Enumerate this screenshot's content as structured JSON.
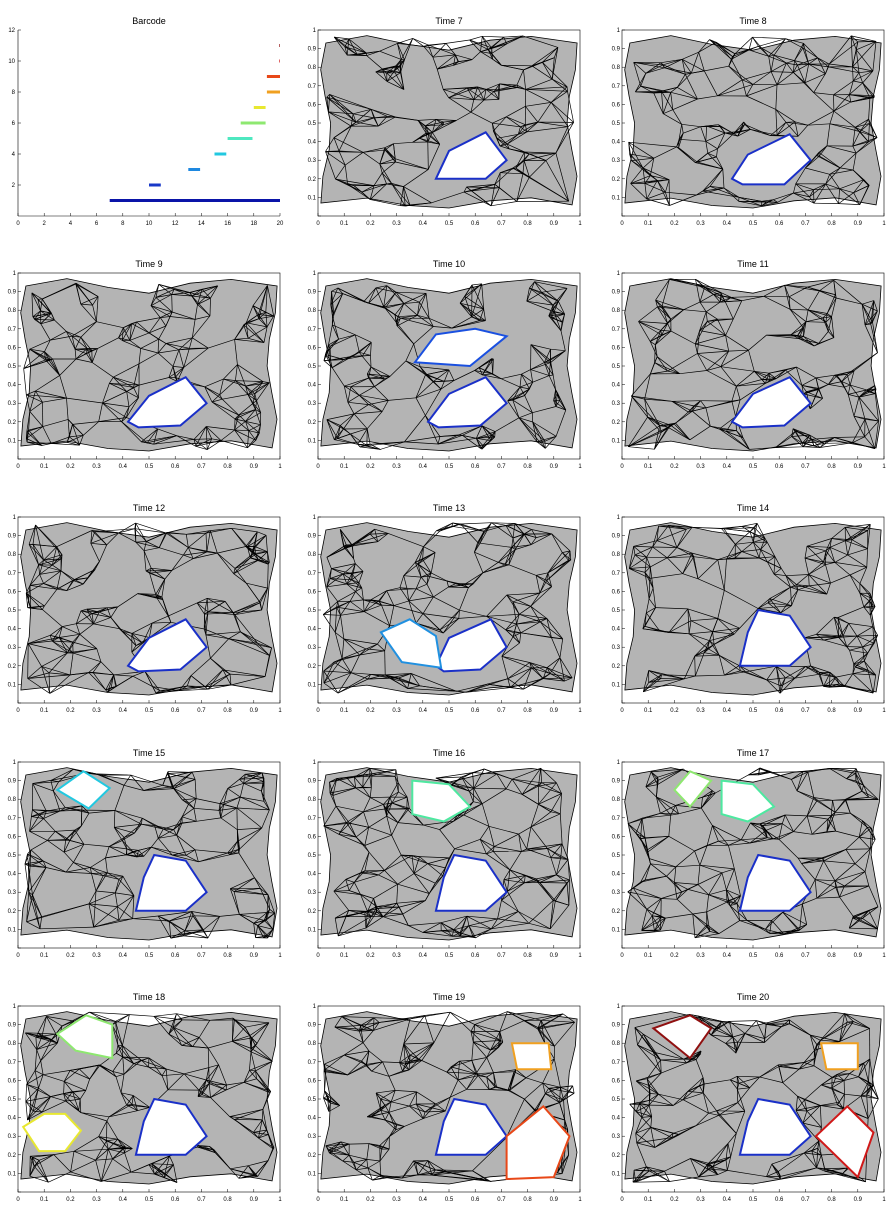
{
  "figure": {
    "background": "#ffffff"
  },
  "chart_data": [
    {
      "type": "bar",
      "title": "Barcode",
      "xlim": [
        0,
        20
      ],
      "ylim": [
        0,
        12
      ],
      "xticks": [
        "0",
        "2",
        "4",
        "6",
        "8",
        "10",
        "12",
        "14",
        "16",
        "18",
        "20"
      ],
      "yticks": [
        "2",
        "4",
        "6",
        "8",
        "10",
        "12"
      ],
      "bars": [
        {
          "index": 1,
          "start": 7.0,
          "end": 20.0,
          "color": "#0a14a8"
        },
        {
          "index": 2,
          "start": 10.0,
          "end": 10.9,
          "color": "#1838c8"
        },
        {
          "index": 3,
          "start": 13.0,
          "end": 13.9,
          "color": "#1e88e0"
        },
        {
          "index": 4,
          "start": 15.0,
          "end": 15.9,
          "color": "#22c8e0"
        },
        {
          "index": 5,
          "start": 16.0,
          "end": 17.9,
          "color": "#4ee8c0"
        },
        {
          "index": 6,
          "start": 17.0,
          "end": 18.9,
          "color": "#8ee870"
        },
        {
          "index": 7,
          "start": 18.0,
          "end": 18.9,
          "color": "#e8e830"
        },
        {
          "index": 8,
          "start": 19.0,
          "end": 20.0,
          "color": "#f0a020"
        },
        {
          "index": 9,
          "start": 19.0,
          "end": 20.0,
          "color": "#e84818"
        },
        {
          "index": 10,
          "start": 19.95,
          "end": 20.0,
          "color": "#d01818"
        },
        {
          "index": 11,
          "start": 19.95,
          "end": 20.0,
          "color": "#901010"
        }
      ]
    },
    {
      "type": "scatter",
      "title": "Time  7",
      "xlim": [
        0,
        1
      ],
      "ylim": [
        0,
        1
      ],
      "cycles": [
        {
          "color": "#1a30c8",
          "points": [
            [
              0.45,
              0.2
            ],
            [
              0.5,
              0.35
            ],
            [
              0.64,
              0.45
            ],
            [
              0.72,
              0.3
            ],
            [
              0.64,
              0.2
            ]
          ]
        }
      ]
    },
    {
      "type": "scatter",
      "title": "Time  8",
      "xlim": [
        0,
        1
      ],
      "ylim": [
        0,
        1
      ],
      "cycles": [
        {
          "color": "#1a30c8",
          "points": [
            [
              0.42,
              0.2
            ],
            [
              0.48,
              0.33
            ],
            [
              0.64,
              0.44
            ],
            [
              0.72,
              0.3
            ],
            [
              0.62,
              0.17
            ],
            [
              0.46,
              0.17
            ]
          ]
        }
      ]
    },
    {
      "type": "scatter",
      "title": "Time  9",
      "xlim": [
        0,
        1
      ],
      "ylim": [
        0,
        1
      ],
      "cycles": [
        {
          "color": "#1a30c8",
          "points": [
            [
              0.42,
              0.2
            ],
            [
              0.5,
              0.34
            ],
            [
              0.64,
              0.44
            ],
            [
              0.72,
              0.3
            ],
            [
              0.62,
              0.18
            ],
            [
              0.46,
              0.17
            ]
          ]
        }
      ]
    },
    {
      "type": "scatter",
      "title": "Time 10",
      "xlim": [
        0,
        1
      ],
      "ylim": [
        0,
        1
      ],
      "cycles": [
        {
          "color": "#1a30c8",
          "points": [
            [
              0.42,
              0.2
            ],
            [
              0.5,
              0.35
            ],
            [
              0.64,
              0.44
            ],
            [
              0.72,
              0.3
            ],
            [
              0.62,
              0.18
            ],
            [
              0.46,
              0.17
            ]
          ]
        },
        {
          "color": "#1a50e0",
          "points": [
            [
              0.37,
              0.52
            ],
            [
              0.45,
              0.67
            ],
            [
              0.6,
              0.7
            ],
            [
              0.72,
              0.66
            ],
            [
              0.58,
              0.5
            ]
          ]
        }
      ]
    },
    {
      "type": "scatter",
      "title": "Time 11",
      "xlim": [
        0,
        1
      ],
      "ylim": [
        0,
        1
      ],
      "cycles": [
        {
          "color": "#1a30c8",
          "points": [
            [
              0.42,
              0.2
            ],
            [
              0.5,
              0.35
            ],
            [
              0.64,
              0.44
            ],
            [
              0.72,
              0.3
            ],
            [
              0.62,
              0.18
            ],
            [
              0.46,
              0.17
            ]
          ]
        }
      ]
    },
    {
      "type": "scatter",
      "title": "Time 12",
      "xlim": [
        0,
        1
      ],
      "ylim": [
        0,
        1
      ],
      "cycles": [
        {
          "color": "#1a30c8",
          "points": [
            [
              0.42,
              0.2
            ],
            [
              0.5,
              0.35
            ],
            [
              0.64,
              0.45
            ],
            [
              0.72,
              0.3
            ],
            [
              0.62,
              0.18
            ],
            [
              0.46,
              0.17
            ]
          ]
        }
      ]
    },
    {
      "type": "scatter",
      "title": "Time 13",
      "xlim": [
        0,
        1
      ],
      "ylim": [
        0,
        1
      ],
      "cycles": [
        {
          "color": "#1a30c8",
          "points": [
            [
              0.45,
              0.2
            ],
            [
              0.5,
              0.35
            ],
            [
              0.66,
              0.45
            ],
            [
              0.72,
              0.3
            ],
            [
              0.62,
              0.18
            ],
            [
              0.48,
              0.17
            ]
          ]
        },
        {
          "color": "#2090e0",
          "points": [
            [
              0.24,
              0.38
            ],
            [
              0.32,
              0.22
            ],
            [
              0.47,
              0.19
            ],
            [
              0.45,
              0.36
            ],
            [
              0.35,
              0.45
            ]
          ]
        }
      ]
    },
    {
      "type": "scatter",
      "title": "Time 14",
      "xlim": [
        0,
        1
      ],
      "ylim": [
        0,
        1
      ],
      "cycles": [
        {
          "color": "#1a30c8",
          "points": [
            [
              0.45,
              0.2
            ],
            [
              0.48,
              0.38
            ],
            [
              0.52,
              0.5
            ],
            [
              0.64,
              0.47
            ],
            [
              0.72,
              0.3
            ],
            [
              0.64,
              0.2
            ]
          ]
        }
      ]
    },
    {
      "type": "scatter",
      "title": "Time 15",
      "xlim": [
        0,
        1
      ],
      "ylim": [
        0,
        1
      ],
      "cycles": [
        {
          "color": "#1a30c8",
          "points": [
            [
              0.45,
              0.2
            ],
            [
              0.48,
              0.38
            ],
            [
              0.52,
              0.5
            ],
            [
              0.64,
              0.47
            ],
            [
              0.72,
              0.3
            ],
            [
              0.64,
              0.2
            ]
          ]
        },
        {
          "color": "#22c8e0",
          "points": [
            [
              0.15,
              0.85
            ],
            [
              0.25,
              0.95
            ],
            [
              0.35,
              0.86
            ],
            [
              0.27,
              0.75
            ]
          ]
        }
      ]
    },
    {
      "type": "scatter",
      "title": "Time 16",
      "xlim": [
        0,
        1
      ],
      "ylim": [
        0,
        1
      ],
      "cycles": [
        {
          "color": "#1a30c8",
          "points": [
            [
              0.45,
              0.2
            ],
            [
              0.48,
              0.38
            ],
            [
              0.52,
              0.5
            ],
            [
              0.64,
              0.47
            ],
            [
              0.72,
              0.3
            ],
            [
              0.64,
              0.2
            ]
          ]
        },
        {
          "color": "#4ee8a0",
          "points": [
            [
              0.36,
              0.9
            ],
            [
              0.5,
              0.88
            ],
            [
              0.58,
              0.76
            ],
            [
              0.48,
              0.68
            ],
            [
              0.36,
              0.72
            ]
          ]
        }
      ]
    },
    {
      "type": "scatter",
      "title": "Time 17",
      "xlim": [
        0,
        1
      ],
      "ylim": [
        0,
        1
      ],
      "cycles": [
        {
          "color": "#1a30c8",
          "points": [
            [
              0.45,
              0.2
            ],
            [
              0.48,
              0.38
            ],
            [
              0.52,
              0.5
            ],
            [
              0.64,
              0.47
            ],
            [
              0.72,
              0.3
            ],
            [
              0.64,
              0.2
            ]
          ]
        },
        {
          "color": "#8ee870",
          "points": [
            [
              0.2,
              0.85
            ],
            [
              0.26,
              0.95
            ],
            [
              0.34,
              0.9
            ],
            [
              0.26,
              0.76
            ]
          ]
        },
        {
          "color": "#4ee8a0",
          "points": [
            [
              0.38,
              0.9
            ],
            [
              0.5,
              0.88
            ],
            [
              0.58,
              0.76
            ],
            [
              0.48,
              0.68
            ],
            [
              0.38,
              0.72
            ]
          ]
        }
      ]
    },
    {
      "type": "scatter",
      "title": "Time 18",
      "xlim": [
        0,
        1
      ],
      "ylim": [
        0,
        1
      ],
      "cycles": [
        {
          "color": "#1a30c8",
          "points": [
            [
              0.45,
              0.2
            ],
            [
              0.48,
              0.38
            ],
            [
              0.52,
              0.5
            ],
            [
              0.64,
              0.47
            ],
            [
              0.72,
              0.3
            ],
            [
              0.64,
              0.2
            ]
          ]
        },
        {
          "color": "#8ee870",
          "points": [
            [
              0.15,
              0.85
            ],
            [
              0.26,
              0.95
            ],
            [
              0.36,
              0.9
            ],
            [
              0.36,
              0.72
            ],
            [
              0.22,
              0.76
            ]
          ]
        },
        {
          "color": "#e8e830",
          "points": [
            [
              0.02,
              0.35
            ],
            [
              0.1,
              0.42
            ],
            [
              0.18,
              0.42
            ],
            [
              0.24,
              0.33
            ],
            [
              0.18,
              0.22
            ],
            [
              0.08,
              0.22
            ]
          ]
        }
      ]
    },
    {
      "type": "scatter",
      "title": "Time 19",
      "xlim": [
        0,
        1
      ],
      "ylim": [
        0,
        1
      ],
      "cycles": [
        {
          "color": "#1a30c8",
          "points": [
            [
              0.45,
              0.2
            ],
            [
              0.48,
              0.38
            ],
            [
              0.52,
              0.5
            ],
            [
              0.64,
              0.47
            ],
            [
              0.72,
              0.3
            ],
            [
              0.64,
              0.2
            ]
          ]
        },
        {
          "color": "#f0a020",
          "points": [
            [
              0.74,
              0.8
            ],
            [
              0.88,
              0.8
            ],
            [
              0.89,
              0.66
            ],
            [
              0.76,
              0.66
            ]
          ]
        },
        {
          "color": "#e84818",
          "points": [
            [
              0.72,
              0.3
            ],
            [
              0.86,
              0.46
            ],
            [
              0.96,
              0.3
            ],
            [
              0.9,
              0.08
            ],
            [
              0.72,
              0.07
            ]
          ]
        }
      ]
    },
    {
      "type": "scatter",
      "title": "Time 20",
      "xlim": [
        0,
        1
      ],
      "ylim": [
        0,
        1
      ],
      "cycles": [
        {
          "color": "#1a30c8",
          "points": [
            [
              0.45,
              0.2
            ],
            [
              0.48,
              0.38
            ],
            [
              0.52,
              0.5
            ],
            [
              0.64,
              0.47
            ],
            [
              0.72,
              0.3
            ],
            [
              0.64,
              0.2
            ]
          ]
        },
        {
          "color": "#f0a020",
          "points": [
            [
              0.76,
              0.8
            ],
            [
              0.9,
              0.8
            ],
            [
              0.9,
              0.66
            ],
            [
              0.78,
              0.66
            ]
          ]
        },
        {
          "color": "#d01818",
          "points": [
            [
              0.74,
              0.3
            ],
            [
              0.86,
              0.46
            ],
            [
              0.96,
              0.32
            ],
            [
              0.9,
              0.08
            ]
          ]
        },
        {
          "color": "#901010",
          "points": [
            [
              0.12,
              0.88
            ],
            [
              0.26,
              0.95
            ],
            [
              0.34,
              0.88
            ],
            [
              0.26,
              0.72
            ]
          ]
        }
      ]
    }
  ]
}
